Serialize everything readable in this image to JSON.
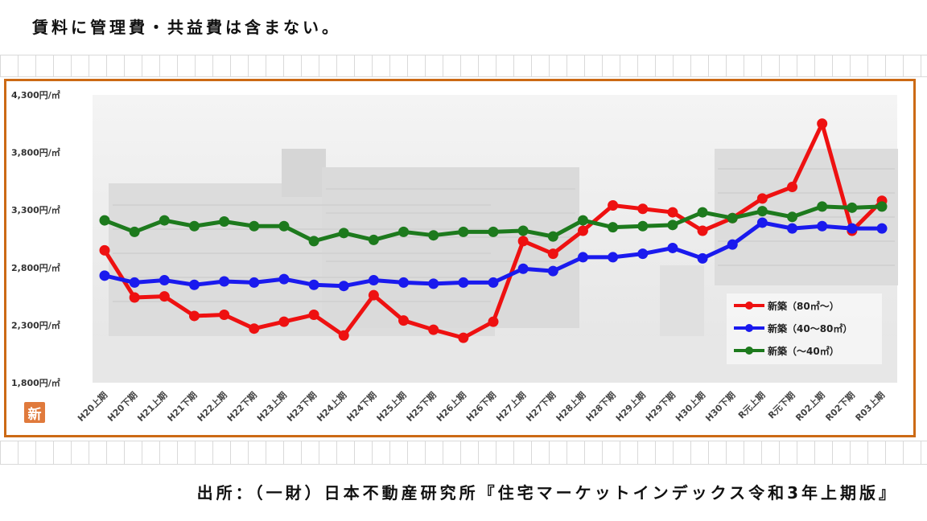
{
  "top_note": "賃料に管理費・共益費は含まない。",
  "source_note": "出所：（一財）日本不動産研究所『住宅マーケットインデックス令和3年上期版』",
  "badge": "新",
  "colors": {
    "frame": "#cc6a15",
    "series_large": "#ee1111",
    "series_medium": "#1a1aee",
    "series_small": "#1d7a1d"
  },
  "chart_data": {
    "type": "line",
    "x": [
      "H20上期",
      "H20下期",
      "H21上期",
      "H21下期",
      "H22上期",
      "H22下期",
      "H23上期",
      "H23下期",
      "H24上期",
      "H24下期",
      "H25上期",
      "H25下期",
      "H26上期",
      "H26下期",
      "H27上期",
      "H27下期",
      "H28上期",
      "H28下期",
      "H29上期",
      "H29下期",
      "H30上期",
      "H30下期",
      "R元上期",
      "R元下期",
      "R02上期",
      "R02下期",
      "R03上期"
    ],
    "yticks": [
      "1,800円/㎡",
      "2,300円/㎡",
      "2,800円/㎡",
      "3,300円/㎡",
      "3,800円/㎡",
      "4,300円/㎡"
    ],
    "ylim": [
      1800,
      4300
    ],
    "series": [
      {
        "name": "新築（80㎡～）",
        "color": "#ee1111",
        "values": [
          2950,
          2540,
          2550,
          2380,
          2390,
          2270,
          2330,
          2390,
          2210,
          2560,
          2340,
          2260,
          2190,
          2330,
          3030,
          2920,
          3120,
          3340,
          3310,
          3280,
          3120,
          3230,
          3400,
          3500,
          4050,
          3120,
          3380
        ]
      },
      {
        "name": "新築（40～80㎡）",
        "color": "#1a1aee",
        "values": [
          2730,
          2670,
          2690,
          2650,
          2680,
          2670,
          2700,
          2650,
          2640,
          2690,
          2670,
          2660,
          2670,
          2670,
          2790,
          2770,
          2890,
          2890,
          2920,
          2970,
          2880,
          3000,
          3190,
          3140,
          3160,
          3140,
          3140
        ]
      },
      {
        "name": "新築（～40㎡）",
        "color": "#1d7a1d",
        "values": [
          3210,
          3110,
          3210,
          3160,
          3200,
          3160,
          3160,
          3030,
          3100,
          3040,
          3110,
          3080,
          3110,
          3110,
          3120,
          3070,
          3210,
          3150,
          3160,
          3170,
          3280,
          3230,
          3290,
          3240,
          3330,
          3320,
          3330
        ]
      }
    ],
    "grid": false,
    "legend": "bottom-right"
  }
}
